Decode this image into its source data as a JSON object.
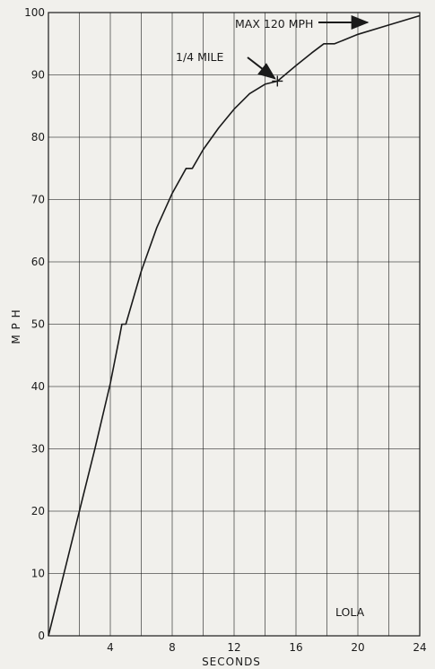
{
  "chart_data": {
    "type": "line",
    "title": "",
    "xlabel": "SECONDS",
    "ylabel": "M P H",
    "xlim": [
      0,
      24
    ],
    "ylim": [
      0,
      100
    ],
    "x_ticks": [
      "0",
      "4",
      "8",
      "12",
      "16",
      "20",
      "24"
    ],
    "y_ticks": [
      "0",
      "10",
      "20",
      "30",
      "40",
      "50",
      "60",
      "70",
      "80",
      "90",
      "100"
    ],
    "grid": true,
    "series": [
      {
        "name": "LOLA",
        "points": [
          [
            0,
            0
          ],
          [
            1,
            10
          ],
          [
            2,
            20
          ],
          [
            3,
            30
          ],
          [
            4,
            40.5
          ],
          [
            4.6,
            48
          ],
          [
            4.75,
            50
          ],
          [
            5.0,
            50
          ],
          [
            6,
            58.5
          ],
          [
            7,
            65.5
          ],
          [
            8,
            71
          ],
          [
            8.9,
            75
          ],
          [
            9.3,
            75
          ],
          [
            10,
            78
          ],
          [
            11,
            81.5
          ],
          [
            12,
            84.5
          ],
          [
            13,
            87
          ],
          [
            14,
            88.5
          ],
          [
            14.8,
            89
          ],
          [
            16,
            91.5
          ],
          [
            17,
            93.5
          ],
          [
            17.8,
            95
          ],
          [
            18.5,
            95
          ],
          [
            20,
            96.5
          ],
          [
            22,
            98
          ],
          [
            24,
            99.5
          ]
        ]
      }
    ],
    "annotations": [
      {
        "text": "MAX 120 MPH",
        "x": 20.5,
        "y": 99.5
      },
      {
        "text": "1/4 MILE",
        "x": 14.8,
        "y": 89
      }
    ],
    "label_text": "LOLA",
    "colors": {
      "background": "#f1f0ec",
      "ink": "#1a1a1a"
    }
  }
}
